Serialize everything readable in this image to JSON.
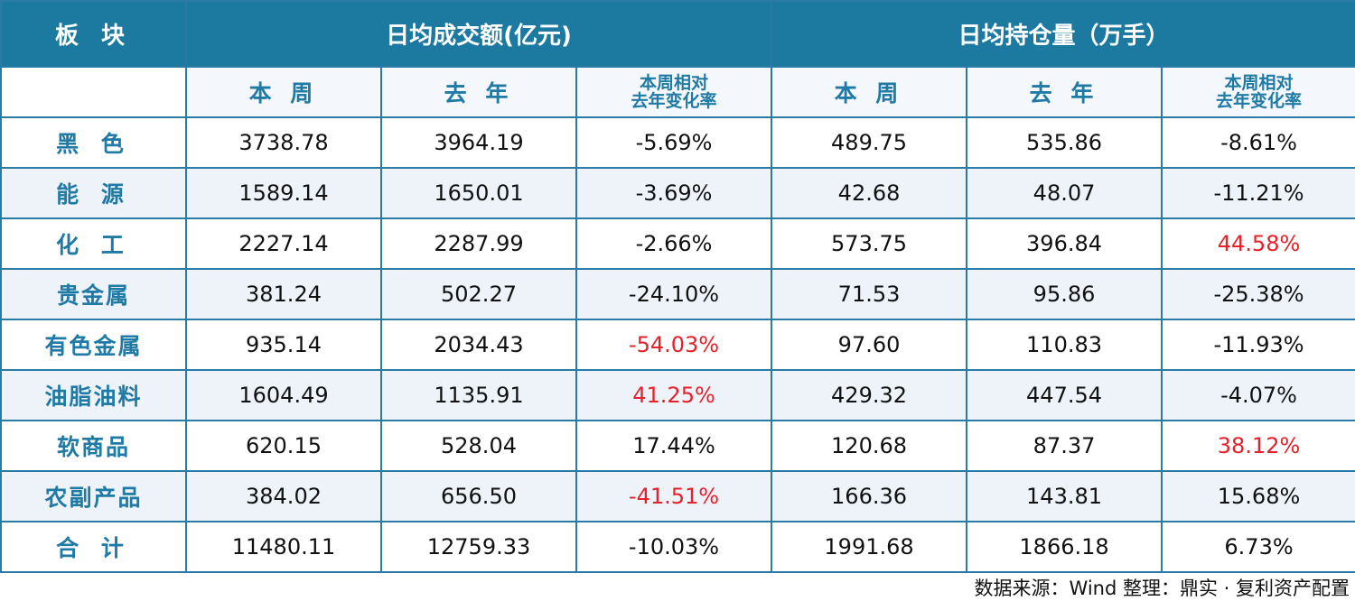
{
  "header": {
    "col_category": "板 块",
    "group_turnover": "日均成交额(亿元)",
    "group_position": "日均持仓量（万手）"
  },
  "subheader": {
    "this_week": "本 周",
    "last_year": "去 年",
    "change_line1": "本周相对",
    "change_line2": "去年变化率"
  },
  "rows": [
    {
      "category": "黑 色",
      "t_week": "3738.78",
      "t_year": "3964.19",
      "t_chg": "-5.69%",
      "p_week": "489.75",
      "p_year": "535.86",
      "p_chg": "-8.61%"
    },
    {
      "category": "能 源",
      "t_week": "1589.14",
      "t_year": "1650.01",
      "t_chg": "-3.69%",
      "p_week": "42.68",
      "p_year": "48.07",
      "p_chg": "-11.21%"
    },
    {
      "category": "化 工",
      "t_week": "2227.14",
      "t_year": "2287.99",
      "t_chg": "-2.66%",
      "p_week": "573.75",
      "p_year": "396.84",
      "p_chg": "44.58%"
    },
    {
      "category": "贵金属",
      "t_week": "381.24",
      "t_year": "502.27",
      "t_chg": "-24.10%",
      "p_week": "71.53",
      "p_year": "95.86",
      "p_chg": "-25.38%"
    },
    {
      "category": "有色金属",
      "t_week": "935.14",
      "t_year": "2034.43",
      "t_chg": "-54.03%",
      "p_week": "97.60",
      "p_year": "110.83",
      "p_chg": "-11.93%"
    },
    {
      "category": "油脂油料",
      "t_week": "1604.49",
      "t_year": "1135.91",
      "t_chg": "41.25%",
      "p_week": "429.32",
      "p_year": "447.54",
      "p_chg": "-4.07%"
    },
    {
      "category": "软商品",
      "t_week": "620.15",
      "t_year": "528.04",
      "t_chg": "17.44%",
      "p_week": "120.68",
      "p_year": "87.37",
      "p_chg": "38.12%"
    },
    {
      "category": "农副产品",
      "t_week": "384.02",
      "t_year": "656.50",
      "t_chg": "-41.51%",
      "p_week": "166.36",
      "p_year": "143.81",
      "p_chg": "15.68%"
    },
    {
      "category": "合 计",
      "t_week": "11480.11",
      "t_year": "12759.33",
      "t_chg": "-10.03%",
      "p_week": "1991.68",
      "p_year": "1866.18",
      "p_chg": "6.73%"
    }
  ],
  "highlight_color": "#e8202a",
  "source_note": "数据来源：Wind 整理：鼎实 · 复利资产配置"
}
